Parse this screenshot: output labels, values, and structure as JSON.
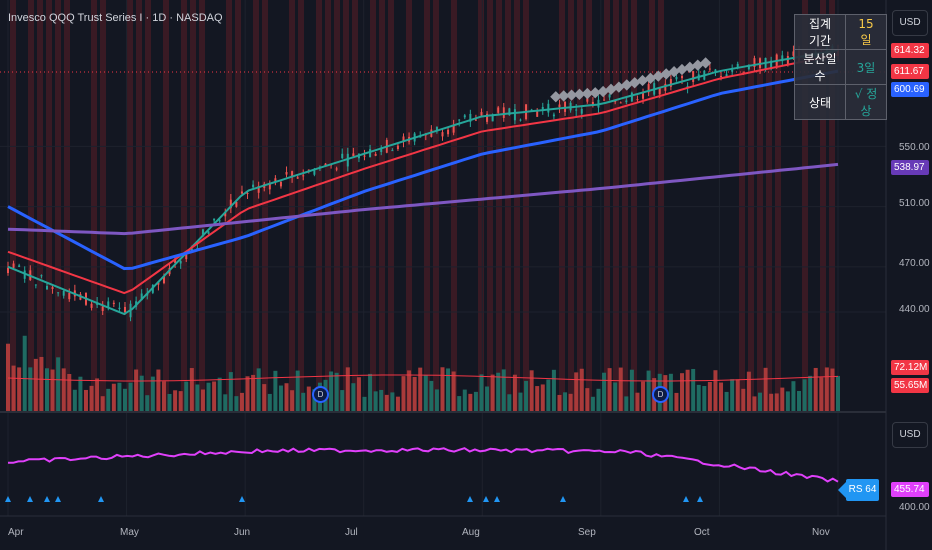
{
  "header": {
    "title": "Invesco QQQ Trust Series I · 1D · NASDAQ"
  },
  "currency": "USD",
  "currency_lower": "USD",
  "price_axis": {
    "ticks": [
      "550.00",
      "510.00",
      "470.00",
      "440.00"
    ]
  },
  "price_tags": [
    {
      "label": "614.32",
      "color": "#f23645"
    },
    {
      "label": "611.67",
      "color": "#f23645"
    },
    {
      "label": "600.69",
      "color": "#2962ff"
    },
    {
      "label": "538.97",
      "color": "#673ab7"
    }
  ],
  "volume_tags": [
    {
      "label": "72.12M",
      "color": "#f23645"
    },
    {
      "label": "55.65M",
      "color": "#f23645"
    }
  ],
  "lower_pane": {
    "rs_label": "RS 64",
    "value": "455.74",
    "value_color": "#e040fb",
    "tick": "400.00"
  },
  "time_axis": {
    "labels": [
      "Apr",
      "May",
      "Jun",
      "Jul",
      "Aug",
      "Sep",
      "Oct",
      "Nov"
    ]
  },
  "info_table": {
    "rows": [
      {
        "label": "집계 기간",
        "value": "15일",
        "color": "#f7c948"
      },
      {
        "label": "분산일 수",
        "value": "3일",
        "color": "#26a69a"
      },
      {
        "label": "상태",
        "value": "√ 정상",
        "color": "#26a69a"
      }
    ]
  },
  "events": [
    {
      "label": "D"
    },
    {
      "label": "D"
    }
  ],
  "colors": {
    "up": "#26a69a",
    "down": "#ef5350",
    "ema_fast": "#26a69a",
    "ema_mid": "#f23645",
    "ma_blue": "#2962ff",
    "ma_purple": "#7e57c2",
    "rs": "#e040fb"
  },
  "chart_data": {
    "type": "line",
    "x": [
      "Apr",
      "May",
      "Jun",
      "Jul",
      "Aug",
      "Sep",
      "Oct",
      "Nov"
    ],
    "series": [
      {
        "values": [
          470,
          438,
          520,
          545,
          570,
          578,
          600,
          614
        ]
      },
      {
        "values": [
          480,
          452,
          508,
          535,
          560,
          572,
          595,
          611
        ]
      },
      {
        "values": [
          510,
          468,
          490,
          520,
          545,
          560,
          585,
          600
        ]
      },
      {
        "values": [
          495,
          492,
          500,
          508,
          515,
          522,
          530,
          538
        ]
      }
    ]
  }
}
